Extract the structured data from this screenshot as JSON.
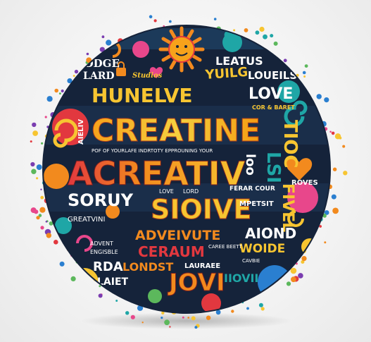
{
  "artwork": {
    "palette": {
      "navy": "#0f2a44",
      "dark": "#15233a",
      "orange": "#f28a1e",
      "yellow": "#f7c531",
      "red": "#e2383f",
      "pink": "#e8478b",
      "teal": "#1fa6a6",
      "blue": "#2a7fd0",
      "purple": "#7a3db0",
      "green": "#5cb85c"
    },
    "words": {
      "addge": "ADDGE",
      "lard": "LARD",
      "leatus": "LEATUS",
      "yuilg": "YUILG",
      "loueils": "LOUEILS",
      "studios": "Studios",
      "hunelve": "HUNELVE",
      "love_right": "LOVE",
      "cor_baret": "COR & BARET",
      "creatine": "CREATINE",
      "aieliv": "AIELIV",
      "tioc": "TIOC",
      "tagline": "POF OF YOURLAFE  INDRTOTY  EPPROUNING  YOUR",
      "acreativ": "ACREATIV",
      "loo": "loo",
      "lsi": "LSI",
      "roves": "ROVES",
      "soruy": "SORUY",
      "love_small": "LOVE",
      "lord": "LORD",
      "ferar_cour": "FERAR COUR",
      "siouve": "SIOIVE",
      "mpetsit": "MPETSIT",
      "greatvini": "GREATVINI",
      "fivel": "FIVEL",
      "adveivute": "ADVEIVUTE",
      "aiond": "AIOND",
      "wode": "WOIDE",
      "advent": "ADVENT",
      "engisble": "ENGISBLE",
      "ceraum": "CERAUM",
      "caree_beett": "CAREE BEETT",
      "cavbie": "CAVBIE",
      "rda": "RDA",
      "londst": "LONDST",
      "lauraee": "LAURAEE",
      "laiet": "LAIET",
      "jovi": "JOVI",
      "jovi_small": "IIOVII"
    }
  }
}
